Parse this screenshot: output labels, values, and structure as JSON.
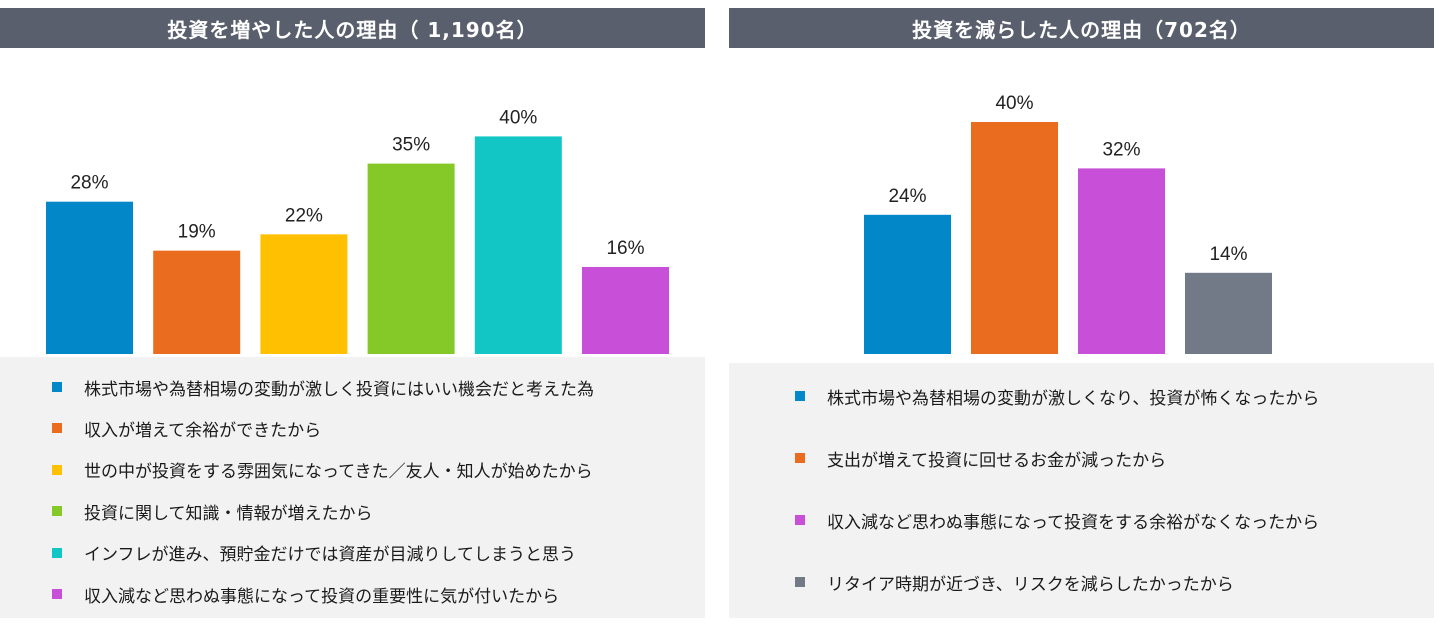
{
  "chart_data": [
    {
      "type": "bar",
      "title": "投資を増やした人の理由（ 1,190名）",
      "categories": [
        "株式市場や為替相場の変動が激しく投資にはいい機会だと考えた為",
        "収入が増えて余裕ができたから",
        "世の中が投資をする雰囲気になってきた／友人・知人が始めたから",
        "投資に関して知識・情報が増えたから",
        "インフレが進み、預貯金だけでは資産が目減りしてしまうと思う",
        "収入減など思わぬ事態になって投資の重要性に気が付いたから"
      ],
      "values": [
        28,
        19,
        22,
        35,
        40,
        16
      ],
      "value_labels": [
        "28%",
        "19%",
        "22%",
        "35%",
        "40%",
        "16%"
      ],
      "colors": [
        "#0288c8",
        "#ea6c1f",
        "#fec000",
        "#84c927",
        "#13c6c6",
        "#c84fd7"
      ],
      "ylim": [
        0,
        46
      ],
      "legend_position": "bottom"
    },
    {
      "type": "bar",
      "title": "投資を減らした人の理由（702名）",
      "categories": [
        "株式市場や為替相場の変動が激しくなり、投資が怖くなったから",
        "支出が増えて投資に回せるお金が減ったから",
        "収入減など思わぬ事態になって投資をする余裕がなくなったから",
        "リタイア時期が近づき、リスクを減らしたかったから"
      ],
      "values": [
        24,
        40,
        32,
        14
      ],
      "value_labels": [
        "24%",
        "40%",
        "32%",
        "14%"
      ],
      "colors": [
        "#0288c8",
        "#ea6c1f",
        "#c84fd7",
        "#737a87"
      ],
      "ylim": [
        0,
        46
      ],
      "legend_position": "bottom"
    }
  ]
}
